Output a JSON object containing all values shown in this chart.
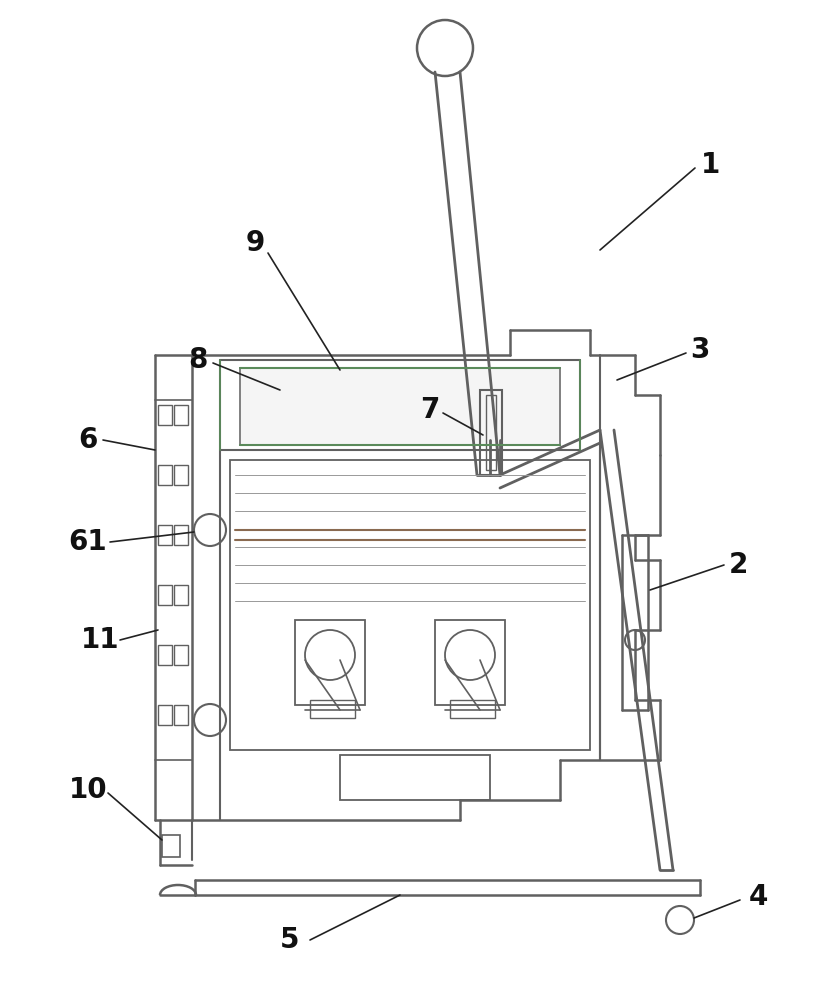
{
  "background_color": "#ffffff",
  "lc": "#606060",
  "lc2": "#808080",
  "lc_green": "#5a8a5a",
  "lc_brown": "#8a6a50",
  "lw": 1.4,
  "lw2": 1.0,
  "label_fontsize": 20,
  "label_fontweight": "bold",
  "label_color": "#111111"
}
